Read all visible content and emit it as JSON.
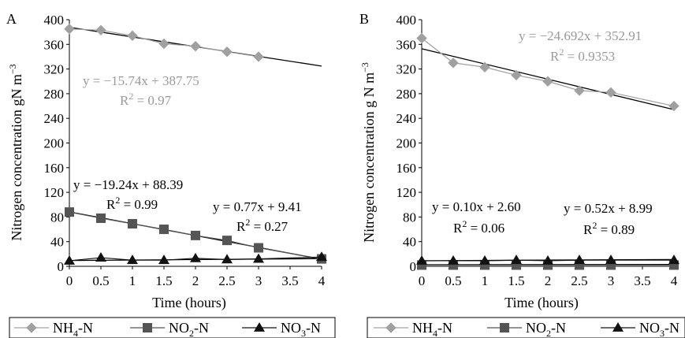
{
  "chart_data": [
    {
      "panel_label": "A",
      "type": "line",
      "xlabel": "Time (hours)",
      "ylabel": "Nitrogen concentration gN m",
      "ylabel_sup": "−3",
      "xlim": [
        0,
        4
      ],
      "ylim": [
        0,
        400
      ],
      "x_ticks": [
        "0",
        "0.5",
        "1",
        "1.5",
        "2",
        "2.5",
        "3",
        "3.5",
        "4"
      ],
      "y_ticks": [
        "0",
        "40",
        "80",
        "120",
        "160",
        "200",
        "240",
        "280",
        "320",
        "360",
        "400"
      ],
      "series": [
        {
          "name_main": "NH",
          "name_sub": "4",
          "name_tail": "-N",
          "color": "#a0a0a0",
          "marker": "diamond",
          "x": [
            0,
            0.5,
            1,
            1.5,
            2,
            2.5,
            3
          ],
          "y": [
            385,
            383,
            374,
            361,
            357,
            348,
            340
          ]
        },
        {
          "name_main": "NO",
          "name_sub": "2",
          "name_tail": "-N",
          "color": "#555555",
          "marker": "square",
          "x": [
            0,
            0.5,
            1,
            1.5,
            2,
            2.5,
            3,
            4
          ],
          "y": [
            88,
            78,
            69,
            60,
            50,
            42,
            30,
            12
          ]
        },
        {
          "name_main": "NO",
          "name_sub": "3",
          "name_tail": "-N",
          "color": "#111111",
          "marker": "triangle",
          "x": [
            0,
            0.5,
            1,
            1.5,
            2,
            2.5,
            3,
            4
          ],
          "y": [
            9,
            14,
            10,
            10,
            13,
            11,
            12,
            15
          ]
        }
      ],
      "trendlines": [
        {
          "slope": -15.74,
          "intercept": 387.75,
          "x": [
            0,
            4
          ]
        },
        {
          "slope": -19.24,
          "intercept": 88.39,
          "x": [
            0,
            4
          ]
        },
        {
          "slope": 0.77,
          "intercept": 9.41,
          "x": [
            0,
            4
          ]
        }
      ],
      "annotations": [
        {
          "eq": "y = −15.74x + 387.75",
          "r2_value": " = 0.97",
          "style": "gray"
        },
        {
          "eq": "y = −19.24x + 88.39",
          "r2_value": " = 0.99",
          "style": "black"
        },
        {
          "eq": "y = 0.77x + 9.41",
          "r2_value": " = 0.27",
          "style": "black"
        }
      ]
    },
    {
      "panel_label": "B",
      "type": "line",
      "xlabel": "Time (hours)",
      "ylabel": "Nitrogen concentration g N m",
      "ylabel_sup": "−3",
      "xlim": [
        0,
        4
      ],
      "ylim": [
        0,
        400
      ],
      "x_ticks": [
        "0",
        "0.5",
        "1",
        "1.5",
        "2",
        "2.5",
        "3",
        "3.5",
        "4"
      ],
      "y_ticks": [
        "0",
        "40",
        "80",
        "120",
        "160",
        "200",
        "240",
        "280",
        "320",
        "360",
        "400"
      ],
      "series": [
        {
          "name_main": "NH",
          "name_sub": "4",
          "name_tail": "-N",
          "color": "#a0a0a0",
          "marker": "diamond",
          "x": [
            0,
            0.5,
            1,
            1.5,
            2,
            2.5,
            3,
            4
          ],
          "y": [
            370,
            330,
            323,
            310,
            300,
            285,
            282,
            260
          ]
        },
        {
          "name_main": "NO",
          "name_sub": "2",
          "name_tail": "-N",
          "color": "#555555",
          "marker": "square",
          "x": [
            0,
            0.5,
            1,
            1.5,
            2,
            2.5,
            3,
            4
          ],
          "y": [
            2,
            2,
            2,
            2,
            2,
            2,
            2,
            2
          ]
        },
        {
          "name_main": "NO",
          "name_sub": "3",
          "name_tail": "-N",
          "color": "#111111",
          "marker": "triangle",
          "x": [
            0,
            0.5,
            1,
            1.5,
            2,
            2.5,
            3,
            4
          ],
          "y": [
            9,
            9,
            9,
            10,
            9,
            10,
            10,
            10
          ]
        }
      ],
      "trendlines": [
        {
          "slope": -24.692,
          "intercept": 352.91,
          "x": [
            0,
            4
          ]
        },
        {
          "slope": 0.1,
          "intercept": 2.6,
          "x": [
            0,
            4
          ]
        },
        {
          "slope": 0.52,
          "intercept": 8.99,
          "x": [
            0,
            4
          ]
        }
      ],
      "annotations": [
        {
          "eq": "y = −24.692x + 352.91",
          "r2_value": " = 0.9353",
          "style": "gray"
        },
        {
          "eq": "y = 0.10x + 2.60",
          "r2_value": " = 0.06",
          "style": "black"
        },
        {
          "eq": "y = 0.52x + 8.99",
          "r2_value": " = 0.89",
          "style": "black"
        }
      ]
    }
  ]
}
